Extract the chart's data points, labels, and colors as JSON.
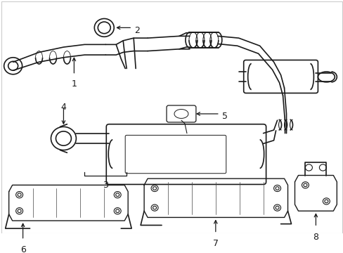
{
  "background_color": "#ffffff",
  "line_color": "#1a1a1a",
  "label_color": "#111111",
  "fig_width": 4.89,
  "fig_height": 3.6,
  "dpi": 100,
  "border_color": "#aaaaaa"
}
